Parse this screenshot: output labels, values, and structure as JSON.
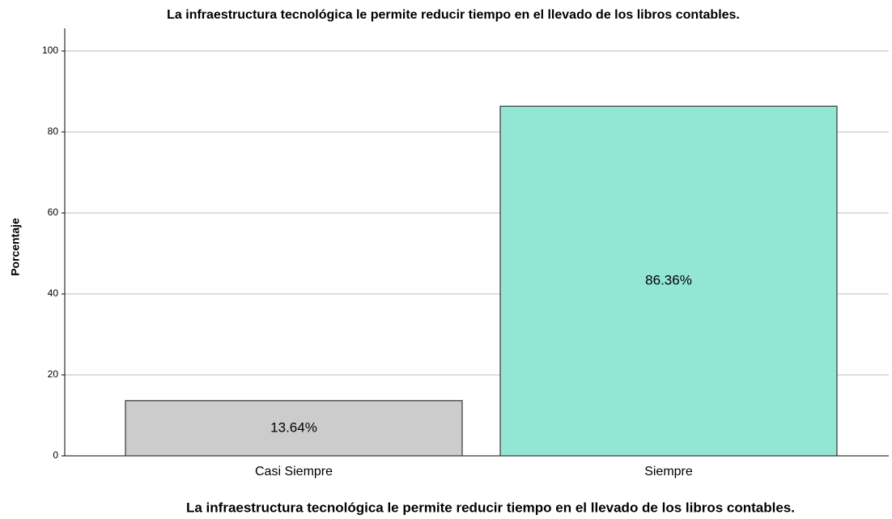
{
  "chart_data": {
    "type": "bar",
    "title": "La infraestructura tecnológica le permite reducir tiempo en el llevado de los libros contables.",
    "x_label": "La infraestructura tecnológica le permite reducir tiempo en el llevado de los libros contables.",
    "y_label": "Porcentaje",
    "categories": [
      "Casi Siempre",
      "Siempre"
    ],
    "values": [
      13.64,
      86.36
    ],
    "value_labels": [
      "13.64%",
      "86.36%"
    ],
    "colors": [
      "#cccccc",
      "#93e5d4"
    ],
    "ylim": [
      0,
      105.6
    ],
    "yticks": [
      0,
      20,
      40,
      60,
      80,
      100
    ],
    "grid": true
  }
}
